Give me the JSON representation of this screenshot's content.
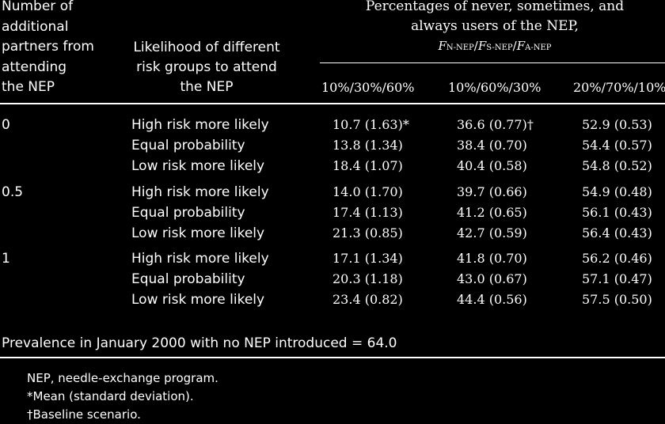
{
  "header": {
    "col1_lines": [
      "Number of",
      "additional",
      "partners from",
      "attending",
      "the NEP"
    ],
    "col2_lines": [
      "Likelihood of different",
      "risk groups to attend",
      "the NEP"
    ],
    "span_lines": [
      "Percentages of never, sometimes, and",
      "always users of the NEP,"
    ],
    "span_formula": {
      "f1": "F",
      "s1": "N-NEP",
      "sep1": "/",
      "f2": "F",
      "s2": "S-NEP",
      "sep2": "/",
      "f3": "F",
      "s3": "A-NEP"
    },
    "columns": [
      "10%/30%/60%",
      "10%/60%/30%",
      "20%/70%/10%"
    ]
  },
  "groups": [
    {
      "partners": "0",
      "rows": [
        {
          "likelihood": "High risk more likely",
          "c1": "10.7 (1.63)*",
          "c2": "36.6 (0.77)†",
          "c3": "52.9 (0.53)"
        },
        {
          "likelihood": "Equal probability",
          "c1": "13.8 (1.34)",
          "c2": "38.4 (0.70)",
          "c3": "54.4 (0.57)"
        },
        {
          "likelihood": "Low risk more likely",
          "c1": "18.4 (1.07)",
          "c2": "40.4 (0.58)",
          "c3": "54.8 (0.52)"
        }
      ]
    },
    {
      "partners": "0.5",
      "rows": [
        {
          "likelihood": "High risk more likely",
          "c1": "14.0 (1.70)",
          "c2": "39.7 (0.66)",
          "c3": "54.9 (0.48)"
        },
        {
          "likelihood": "Equal probability",
          "c1": "17.4 (1.13)",
          "c2": "41.2 (0.65)",
          "c3": "56.1 (0.43)"
        },
        {
          "likelihood": "Low risk more likely",
          "c1": "21.3 (0.85)",
          "c2": "42.7 (0.59)",
          "c3": "56.4 (0.43)"
        }
      ]
    },
    {
      "partners": "1",
      "rows": [
        {
          "likelihood": "High risk more likely",
          "c1": "17.1 (1.34)",
          "c2": "41.8 (0.70)",
          "c3": "56.2 (0.46)"
        },
        {
          "likelihood": "Equal probability",
          "c1": "20.3 (1.18)",
          "c2": "43.0 (0.67)",
          "c3": "57.1 (0.47)"
        },
        {
          "likelihood": "Low risk more likely",
          "c1": "23.4 (0.82)",
          "c2": "44.4 (0.56)",
          "c3": "57.5 (0.50)"
        }
      ]
    }
  ],
  "prevalence": "Prevalence in January 2000 with no NEP introduced = 64.0",
  "notes": [
    "NEP, needle-exchange program.",
    "*Mean (standard deviation).",
    "†Baseline scenario."
  ]
}
